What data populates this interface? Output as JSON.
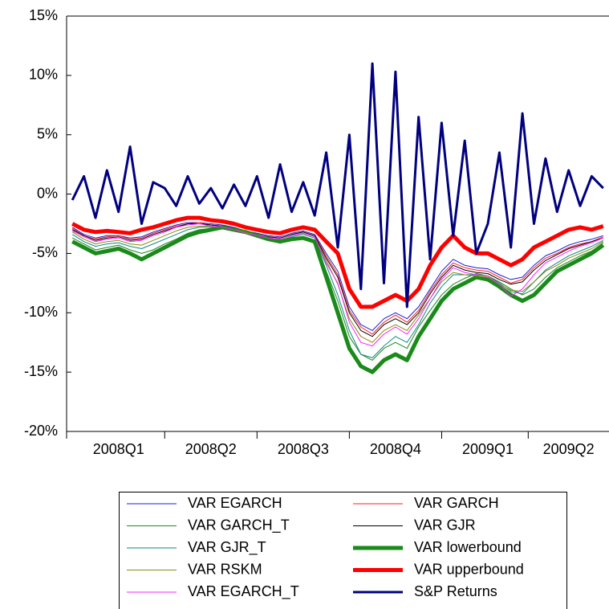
{
  "chart_data": {
    "type": "line",
    "categories": [
      null,
      null,
      null,
      null,
      "2008Q1",
      null,
      null,
      null,
      null,
      null,
      null,
      null,
      "2008Q2",
      null,
      null,
      null,
      null,
      null,
      null,
      null,
      "2008Q3",
      null,
      null,
      null,
      null,
      null,
      null,
      null,
      "2008Q4",
      null,
      null,
      null,
      null,
      null,
      null,
      null,
      "2009Q1",
      null,
      null,
      null,
      null,
      null,
      null,
      "2009Q2",
      null,
      null,
      null
    ],
    "ylim": [
      -20,
      15
    ],
    "yticks": [
      {
        "value": -20,
        "label": "-20%"
      },
      {
        "value": -15,
        "label": "-15%"
      },
      {
        "value": -10,
        "label": "-10%"
      },
      {
        "value": -5,
        "label": "-5%"
      },
      {
        "value": 0,
        "label": "0%"
      },
      {
        "value": 5,
        "label": "5%"
      },
      {
        "value": 10,
        "label": "10%"
      },
      {
        "value": 15,
        "label": "15%"
      }
    ],
    "series": [
      {
        "name": "VAR EGARCH",
        "color": "#1c1cd6",
        "line_width": 1,
        "values": [
          -2.8,
          -3.4,
          -3.7,
          -3.5,
          -3.5,
          -3.7,
          -3.6,
          -3.2,
          -2.9,
          -2.6,
          -2.4,
          -2.4,
          -2.5,
          -2.6,
          -2.8,
          -3.1,
          -3.3,
          -3.5,
          -3.6,
          -3.3,
          -3.1,
          -3.4,
          -5.0,
          -6.5,
          -9.5,
          -11.0,
          -11.5,
          -10.5,
          -10.0,
          -10.5,
          -9.5,
          -8.0,
          -6.5,
          -5.5,
          -6.0,
          -6.2,
          -6.3,
          -6.8,
          -7.2,
          -7.0,
          -6.0,
          -5.2,
          -4.8,
          -4.3,
          -4.0,
          -3.8,
          -3.5
        ]
      },
      {
        "name": "VAR GARCH",
        "color": "#ff2020",
        "line_width": 1,
        "values": [
          -2.9,
          -3.5,
          -3.8,
          -3.6,
          -3.5,
          -3.8,
          -3.7,
          -3.3,
          -3.0,
          -2.7,
          -2.5,
          -2.4,
          -2.6,
          -2.7,
          -2.9,
          -3.2,
          -3.4,
          -3.6,
          -3.7,
          -3.4,
          -3.2,
          -3.5,
          -5.2,
          -6.8,
          -9.8,
          -11.2,
          -11.8,
          -10.8,
          -10.2,
          -10.8,
          -9.8,
          -8.2,
          -6.8,
          -5.8,
          -6.2,
          -6.4,
          -6.5,
          -7.0,
          -7.5,
          -7.2,
          -6.2,
          -5.4,
          -5.0,
          -4.5,
          -4.2,
          -4.0,
          -3.6
        ]
      },
      {
        "name": "VAR GARCH_T",
        "color": "#1a8a1a",
        "line_width": 1,
        "values": [
          -3.7,
          -4.2,
          -4.7,
          -4.5,
          -4.3,
          -4.7,
          -5.0,
          -4.7,
          -4.2,
          -3.8,
          -3.3,
          -3.0,
          -2.9,
          -2.7,
          -2.9,
          -3.1,
          -3.4,
          -3.7,
          -3.9,
          -3.7,
          -3.6,
          -3.9,
          -6.5,
          -9.0,
          -12.0,
          -13.5,
          -14.0,
          -13.0,
          -12.5,
          -13.0,
          -11.2,
          -9.8,
          -8.5,
          -7.6,
          -7.1,
          -6.7,
          -6.9,
          -7.4,
          -8.0,
          -8.5,
          -8.0,
          -7.0,
          -6.2,
          -5.7,
          -5.2,
          -4.8,
          -4.1
        ]
      },
      {
        "name": "VAR GJR",
        "color": "#000000",
        "line_width": 1,
        "values": [
          -3.0,
          -3.5,
          -3.9,
          -3.7,
          -3.6,
          -3.9,
          -3.8,
          -3.4,
          -3.1,
          -2.8,
          -2.5,
          -2.5,
          -2.6,
          -2.7,
          -2.9,
          -3.2,
          -3.4,
          -3.6,
          -3.7,
          -3.4,
          -3.2,
          -3.5,
          -5.4,
          -7.0,
          -10.0,
          -11.5,
          -12.0,
          -11.0,
          -10.5,
          -11.0,
          -10.0,
          -8.4,
          -7.0,
          -6.0,
          -6.4,
          -6.6,
          -6.7,
          -7.2,
          -7.6,
          -7.4,
          -6.4,
          -5.6,
          -5.1,
          -4.6,
          -4.3,
          -4.0,
          -3.7
        ]
      },
      {
        "name": "VAR GJR_T",
        "color": "#0e8a8a",
        "line_width": 1,
        "values": [
          -3.4,
          -4.0,
          -4.4,
          -4.2,
          -4.1,
          -4.4,
          -4.6,
          -4.2,
          -3.8,
          -3.4,
          -3.0,
          -2.8,
          -2.8,
          -2.8,
          -3.0,
          -3.3,
          -3.5,
          -3.8,
          -3.9,
          -3.6,
          -3.4,
          -3.7,
          -6.0,
          -8.5,
          -11.5,
          -13.5,
          -13.8,
          -12.8,
          -12.0,
          -12.5,
          -11.0,
          -9.2,
          -7.8,
          -6.8,
          -6.8,
          -6.8,
          -6.9,
          -7.5,
          -8.2,
          -8.4,
          -7.4,
          -6.4,
          -5.8,
          -5.2,
          -4.8,
          -4.4,
          -3.9
        ]
      },
      {
        "name": "VAR lowerbound",
        "color": "#1a8a1a",
        "line_width": 5,
        "values": [
          -4.0,
          -4.5,
          -5.0,
          -4.8,
          -4.6,
          -5.0,
          -5.5,
          -5.0,
          -4.5,
          -4.0,
          -3.5,
          -3.2,
          -3.0,
          -2.8,
          -3.0,
          -3.2,
          -3.5,
          -3.8,
          -4.0,
          -3.8,
          -3.7,
          -4.0,
          -7.0,
          -10.0,
          -13.0,
          -14.5,
          -15.0,
          -14.0,
          -13.5,
          -14.0,
          -12.0,
          -10.5,
          -9.0,
          -8.0,
          -7.5,
          -7.0,
          -7.2,
          -7.8,
          -8.5,
          -9.0,
          -8.5,
          -7.5,
          -6.5,
          -6.0,
          -5.5,
          -5.0,
          -4.3
        ]
      },
      {
        "name": "VAR RSKM",
        "color": "#8a8a10",
        "line_width": 1,
        "values": [
          -3.2,
          -3.8,
          -4.2,
          -4.0,
          -3.9,
          -4.2,
          -4.3,
          -3.9,
          -3.5,
          -3.1,
          -2.8,
          -2.7,
          -2.7,
          -2.8,
          -3.0,
          -3.2,
          -3.5,
          -3.7,
          -3.8,
          -3.5,
          -3.3,
          -3.6,
          -5.6,
          -7.6,
          -10.5,
          -12.0,
          -12.5,
          -11.5,
          -11.0,
          -11.5,
          -10.2,
          -8.8,
          -7.4,
          -6.6,
          -6.8,
          -6.9,
          -7.0,
          -7.6,
          -8.1,
          -8.2,
          -7.4,
          -6.5,
          -6.0,
          -5.4,
          -5.0,
          -4.6,
          -4.0
        ]
      },
      {
        "name": "VAR upperbound",
        "color": "#ff0000",
        "line_width": 5,
        "values": [
          -2.5,
          -3.0,
          -3.2,
          -3.1,
          -3.2,
          -3.3,
          -3.0,
          -2.8,
          -2.5,
          -2.2,
          -2.0,
          -2.0,
          -2.2,
          -2.3,
          -2.5,
          -2.8,
          -3.0,
          -3.2,
          -3.3,
          -3.0,
          -2.8,
          -3.0,
          -4.0,
          -5.0,
          -8.0,
          -9.5,
          -9.5,
          -9.0,
          -8.5,
          -9.0,
          -8.0,
          -6.0,
          -4.5,
          -3.5,
          -4.5,
          -5.0,
          -5.0,
          -5.5,
          -6.0,
          -5.5,
          -4.5,
          -4.0,
          -3.5,
          -3.0,
          -2.8,
          -3.0,
          -2.7
        ]
      },
      {
        "name": "VAR EGARCH_T",
        "color": "#ff20ff",
        "line_width": 1,
        "values": [
          -3.1,
          -3.6,
          -4.0,
          -3.8,
          -3.7,
          -4.0,
          -3.9,
          -3.5,
          -3.2,
          -2.8,
          -2.6,
          -2.5,
          -2.7,
          -2.8,
          -3.0,
          -3.3,
          -3.5,
          -3.7,
          -3.8,
          -3.5,
          -3.3,
          -3.6,
          -5.8,
          -7.5,
          -10.8,
          -12.5,
          -12.8,
          -11.8,
          -11.2,
          -11.8,
          -10.5,
          -8.8,
          -7.2,
          -6.2,
          -6.6,
          -6.8,
          -6.9,
          -7.6,
          -8.6,
          -8.0,
          -6.8,
          -5.8,
          -5.3,
          -4.8,
          -4.4,
          -4.1,
          -3.7
        ]
      },
      {
        "name": "S&P Returns",
        "color": "#000080",
        "line_width": 3,
        "values": [
          -0.5,
          1.5,
          -2.0,
          2.0,
          -1.5,
          4.0,
          -2.5,
          1.0,
          0.5,
          -1.0,
          1.5,
          -0.8,
          0.5,
          -1.2,
          0.8,
          -1.0,
          1.5,
          -2.0,
          2.5,
          -1.5,
          1.0,
          -1.8,
          3.5,
          -4.5,
          5.0,
          -8.0,
          11.0,
          -7.5,
          10.3,
          -9.5,
          6.5,
          -5.5,
          6.0,
          -3.5,
          4.5,
          -5.0,
          -2.5,
          3.5,
          -4.5,
          6.8,
          -2.5,
          3.0,
          -1.5,
          2.0,
          -1.0,
          1.5,
          0.5
        ]
      }
    ]
  }
}
